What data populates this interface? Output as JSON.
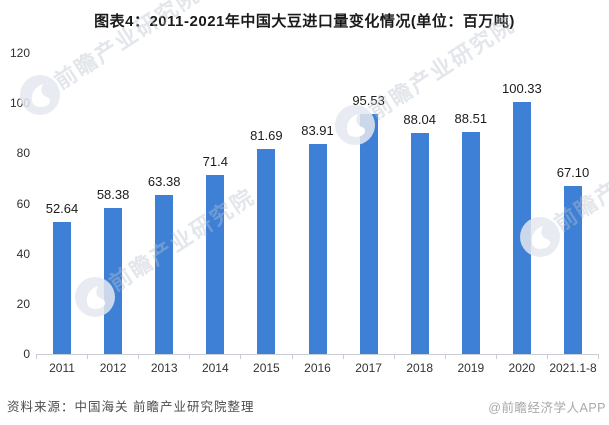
{
  "title": "图表4：2011-2021年中国大豆进口量变化情况(单位：百万吨)",
  "chart_data": {
    "type": "bar",
    "title": "图表4：2011-2021年中国大豆进口量变化情况",
    "unit": "百万吨",
    "categories": [
      "2011",
      "2012",
      "2013",
      "2014",
      "2015",
      "2016",
      "2017",
      "2018",
      "2019",
      "2020",
      "2021.1-8"
    ],
    "values": [
      52.64,
      58.38,
      63.38,
      71.4,
      81.69,
      83.91,
      95.53,
      88.04,
      88.51,
      100.33,
      67.1
    ],
    "value_labels": [
      "52.64",
      "58.38",
      "63.38",
      "71.4",
      "81.69",
      "83.91",
      "95.53",
      "88.04",
      "88.51",
      "100.33",
      "67.10"
    ],
    "xlabel": "",
    "ylabel": "",
    "ylim": [
      0,
      120
    ],
    "yticks": [
      0,
      20,
      40,
      60,
      80,
      100,
      120
    ],
    "grid": false,
    "legend_position": "none",
    "bar_color": "#3E80D6"
  },
  "footer": {
    "source": "资料来源：中国海关 前瞻产业研究院整理",
    "credit": "@前瞻经济学人APP"
  },
  "watermark": {
    "text": "前瞻产业研究院",
    "logo": "qianzhan-bird-logo"
  }
}
